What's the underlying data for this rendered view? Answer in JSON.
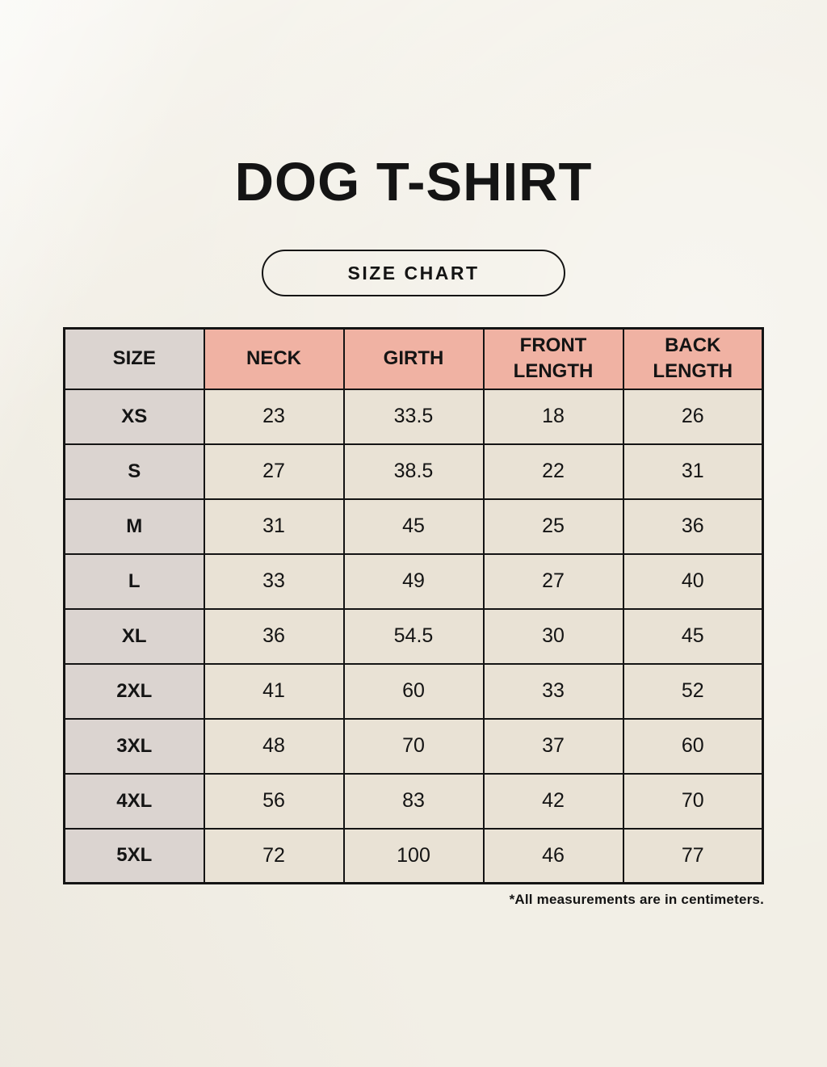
{
  "header": {
    "title": "DOG T-SHIRT",
    "badge_label": "SIZE CHART"
  },
  "footnote": "*All measurements are in centimeters.",
  "colors": {
    "background": "#f2efe6",
    "header_accent_salmon": "#f0b2a3",
    "size_column_gray": "#dbd4d0",
    "cell_beige": "#e9e2d5",
    "border_black": "#141414"
  },
  "chart_data": {
    "type": "table",
    "title": "DOG T-SHIRT SIZE CHART",
    "columns": [
      "SIZE",
      "NECK",
      "GIRTH",
      "FRONT LENGTH",
      "BACK LENGTH"
    ],
    "rows": [
      [
        "XS",
        "23",
        "33.5",
        "18",
        "26"
      ],
      [
        "S",
        "27",
        "38.5",
        "22",
        "31"
      ],
      [
        "M",
        "31",
        "45",
        "25",
        "36"
      ],
      [
        "L",
        "33",
        "49",
        "27",
        "40"
      ],
      [
        "XL",
        "36",
        "54.5",
        "30",
        "45"
      ],
      [
        "2XL",
        "41",
        "60",
        "33",
        "52"
      ],
      [
        "3XL",
        "48",
        "70",
        "37",
        "60"
      ],
      [
        "4XL",
        "56",
        "83",
        "42",
        "70"
      ],
      [
        "5XL",
        "72",
        "100",
        "46",
        "77"
      ]
    ],
    "units_note": "*All measurements are in centimeters."
  }
}
